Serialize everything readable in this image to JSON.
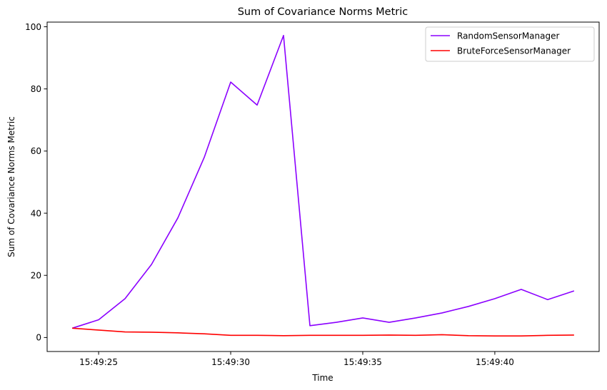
{
  "chart_data": {
    "type": "line",
    "title": "Sum of Covariance Norms Metric",
    "xlabel": "Time",
    "ylabel": "Sum of Covariance Norms Metric",
    "x": [
      "15:49:24",
      "15:49:25",
      "15:49:26",
      "15:49:27",
      "15:49:28",
      "15:49:29",
      "15:49:30",
      "15:49:31",
      "15:49:32",
      "15:49:33",
      "15:49:34",
      "15:49:35",
      "15:49:36",
      "15:49:37",
      "15:49:38",
      "15:49:39",
      "15:49:40",
      "15:49:41",
      "15:49:42",
      "15:49:43"
    ],
    "xticks": [
      "15:49:25",
      "15:49:30",
      "15:49:35",
      "15:49:40"
    ],
    "yticks": [
      0,
      20,
      40,
      60,
      80,
      100
    ],
    "ylim": [
      -4.5,
      101.5
    ],
    "xlim": [
      "15:49:23.05",
      "15:49:43.95"
    ],
    "grid": false,
    "legend_position": "top-right",
    "series": [
      {
        "name": "RandomSensorManager",
        "color": "#8b00ff",
        "values": [
          3.0,
          5.7,
          12.5,
          23.5,
          38.5,
          58.0,
          82.2,
          74.8,
          97.2,
          3.8,
          4.9,
          6.3,
          4.9,
          6.3,
          7.9,
          10.0,
          12.5,
          15.5,
          12.2,
          15.0
        ]
      },
      {
        "name": "BruteForceSensorManager",
        "color": "#ff0000",
        "values": [
          3.0,
          2.4,
          1.8,
          1.7,
          1.5,
          1.2,
          0.7,
          0.7,
          0.6,
          0.7,
          0.7,
          0.7,
          0.8,
          0.7,
          0.9,
          0.6,
          0.5,
          0.5,
          0.7,
          0.8
        ]
      }
    ]
  }
}
